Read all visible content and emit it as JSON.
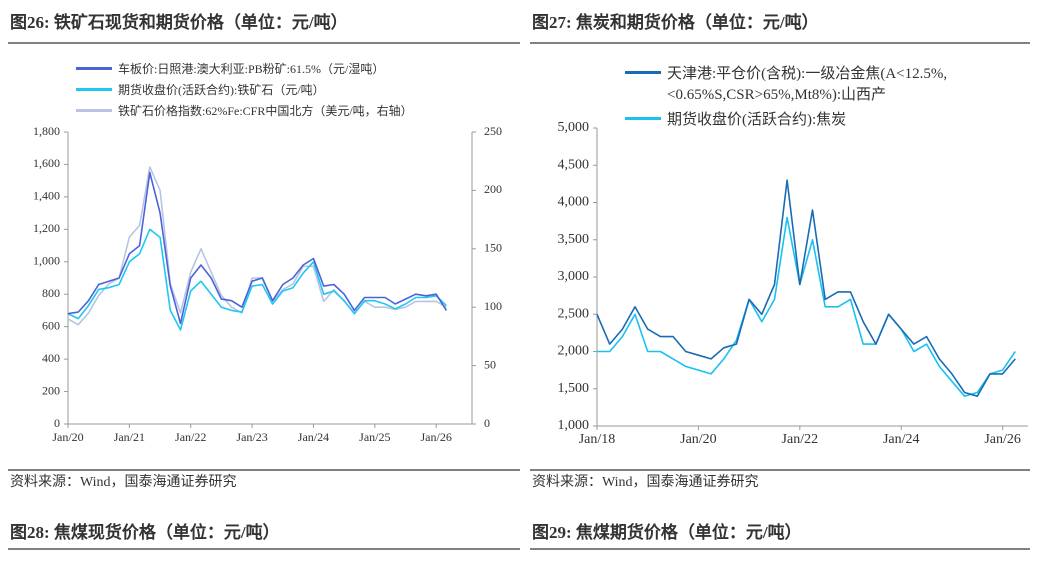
{
  "chart_data": [
    {
      "type": "line",
      "title": "图26: 铁矿石现货和期货价格（单位：元/吨）",
      "source": "资料来源：Wind，国泰海通证券研究",
      "x": [
        "2020-01",
        "2020-03",
        "2020-05",
        "2020-07",
        "2020-09",
        "2020-11",
        "2021-01",
        "2021-03",
        "2021-05",
        "2021-07",
        "2021-09",
        "2021-11",
        "2022-01",
        "2022-03",
        "2022-05",
        "2022-07",
        "2022-09",
        "2022-11",
        "2023-01",
        "2023-03",
        "2023-05",
        "2023-07",
        "2023-09",
        "2023-11",
        "2024-01",
        "2024-03",
        "2024-05",
        "2024-07",
        "2024-09",
        "2024-11",
        "2025-01",
        "2025-03",
        "2025-05",
        "2025-07",
        "2025-09",
        "2025-11",
        "2026-01",
        "2026-03"
      ],
      "xlim": [
        "2020-01",
        "2026-08"
      ],
      "xticks": [
        {
          "value": "2020-01",
          "label": "Jan/20"
        },
        {
          "value": "2021-01",
          "label": "Jan/21"
        },
        {
          "value": "2022-01",
          "label": "Jan/22"
        },
        {
          "value": "2023-01",
          "label": "Jan/23"
        },
        {
          "value": "2024-01",
          "label": "Jan/24"
        },
        {
          "value": "2025-01",
          "label": "Jan/25"
        },
        {
          "value": "2026-01",
          "label": "Jan/26"
        }
      ],
      "ylim": [
        0,
        1800
      ],
      "yticks": [
        0,
        200,
        400,
        600,
        800,
        {
          "value": 1000,
          "label": "1,000"
        },
        {
          "value": 1200,
          "label": "1,200"
        },
        {
          "value": 1400,
          "label": "1,400"
        },
        {
          "value": 1600,
          "label": "1,600"
        },
        {
          "value": 1800,
          "label": "1,800"
        }
      ],
      "y2lim": [
        0,
        250
      ],
      "y2ticks": [
        0,
        50,
        100,
        150,
        200,
        250
      ],
      "series": [
        {
          "name": "车板价:日照港:澳大利亚:PB粉矿:61.5%（元/湿吨）",
          "color": "#4a63d8",
          "values": [
            680,
            690,
            760,
            860,
            880,
            900,
            1050,
            1100,
            1550,
            1300,
            850,
            620,
            900,
            980,
            900,
            770,
            760,
            720,
            880,
            900,
            760,
            860,
            900,
            980,
            1020,
            850,
            860,
            800,
            700,
            780,
            780,
            780,
            740,
            770,
            800,
            790,
            800,
            700
          ]
        },
        {
          "name": "期货收盘价(活跃合约):铁矿石（元/吨）",
          "color": "#1ec8f0",
          "values": [
            680,
            650,
            730,
            830,
            840,
            860,
            1000,
            1050,
            1200,
            1150,
            700,
            580,
            820,
            880,
            800,
            720,
            700,
            690,
            850,
            860,
            740,
            820,
            840,
            930,
            1000,
            800,
            820,
            760,
            680,
            760,
            760,
            740,
            710,
            740,
            780,
            780,
            790,
            730
          ]
        },
        {
          "name": "铁矿石价格指数:62%Fe:CFR中国北方（美元/吨，右轴）",
          "color": "#b8c4e2",
          "axis": "y2",
          "values": [
            90,
            85,
            95,
            110,
            120,
            125,
            160,
            170,
            220,
            200,
            120,
            95,
            130,
            150,
            130,
            110,
            100,
            95,
            125,
            125,
            105,
            115,
            120,
            135,
            135,
            105,
            115,
            105,
            95,
            105,
            100,
            100,
            98,
            100,
            105,
            105,
            105,
            100
          ]
        }
      ]
    },
    {
      "type": "line",
      "title": "图27: 焦炭和期货价格（单位：元/吨）",
      "source": "资料来源：Wind，国泰海通证券研究",
      "x": [
        "2018-01",
        "2018-04",
        "2018-07",
        "2018-10",
        "2019-01",
        "2019-04",
        "2019-07",
        "2019-10",
        "2020-01",
        "2020-04",
        "2020-07",
        "2020-10",
        "2021-01",
        "2021-04",
        "2021-07",
        "2021-10",
        "2022-01",
        "2022-04",
        "2022-07",
        "2022-10",
        "2023-01",
        "2023-04",
        "2023-07",
        "2023-10",
        "2024-01",
        "2024-04",
        "2024-07",
        "2024-10",
        "2025-01",
        "2025-04",
        "2025-07",
        "2025-10",
        "2026-01",
        "2026-04"
      ],
      "xlim": [
        "2018-01",
        "2026-07"
      ],
      "xticks": [
        {
          "value": "2018-01",
          "label": "Jan/18"
        },
        {
          "value": "2020-01",
          "label": "Jan/20"
        },
        {
          "value": "2022-01",
          "label": "Jan/22"
        },
        {
          "value": "2024-01",
          "label": "Jan/24"
        },
        {
          "value": "2026-01",
          "label": "Jan/26"
        }
      ],
      "ylim": [
        1000,
        5000
      ],
      "yticks": [
        {
          "value": 1000,
          "label": "1,000"
        },
        {
          "value": 1500,
          "label": "1,500"
        },
        {
          "value": 2000,
          "label": "2,000"
        },
        {
          "value": 2500,
          "label": "2,500"
        },
        {
          "value": 3000,
          "label": "3,000"
        },
        {
          "value": 3500,
          "label": "3,500"
        },
        {
          "value": 4000,
          "label": "4,000"
        },
        {
          "value": 4500,
          "label": "4,500"
        },
        {
          "value": 5000,
          "label": "5,000"
        }
      ],
      "series": [
        {
          "name": "天津港:平仓价(含税):一级冶金焦(A<12.5%,<0.65%S,CSR>65%,Mt8%):山西产",
          "color": "#1a6bb5",
          "values": [
            2500,
            2100,
            2300,
            2600,
            2300,
            2200,
            2200,
            2000,
            1950,
            1900,
            2050,
            2100,
            2700,
            2500,
            2900,
            4300,
            2900,
            3900,
            2700,
            2800,
            2800,
            2400,
            2100,
            2500,
            2300,
            2100,
            2200,
            1900,
            1700,
            1450,
            1400,
            1700,
            1700,
            1900
          ]
        },
        {
          "name": "期货收盘价(活跃合约):焦炭",
          "color": "#19c0f0",
          "values": [
            2000,
            2000,
            2200,
            2500,
            2000,
            2000,
            1900,
            1800,
            1750,
            1700,
            1900,
            2150,
            2700,
            2400,
            2700,
            3800,
            2900,
            3500,
            2600,
            2600,
            2700,
            2100,
            2100,
            2500,
            2300,
            2000,
            2100,
            1800,
            1600,
            1400,
            1450,
            1700,
            1750,
            2000
          ]
        }
      ]
    }
  ],
  "next_sections": [
    {
      "title": "图28: 焦煤现货价格（单位：元/吨）"
    },
    {
      "title": "图29: 焦煤期货价格（单位：元/吨）"
    }
  ]
}
